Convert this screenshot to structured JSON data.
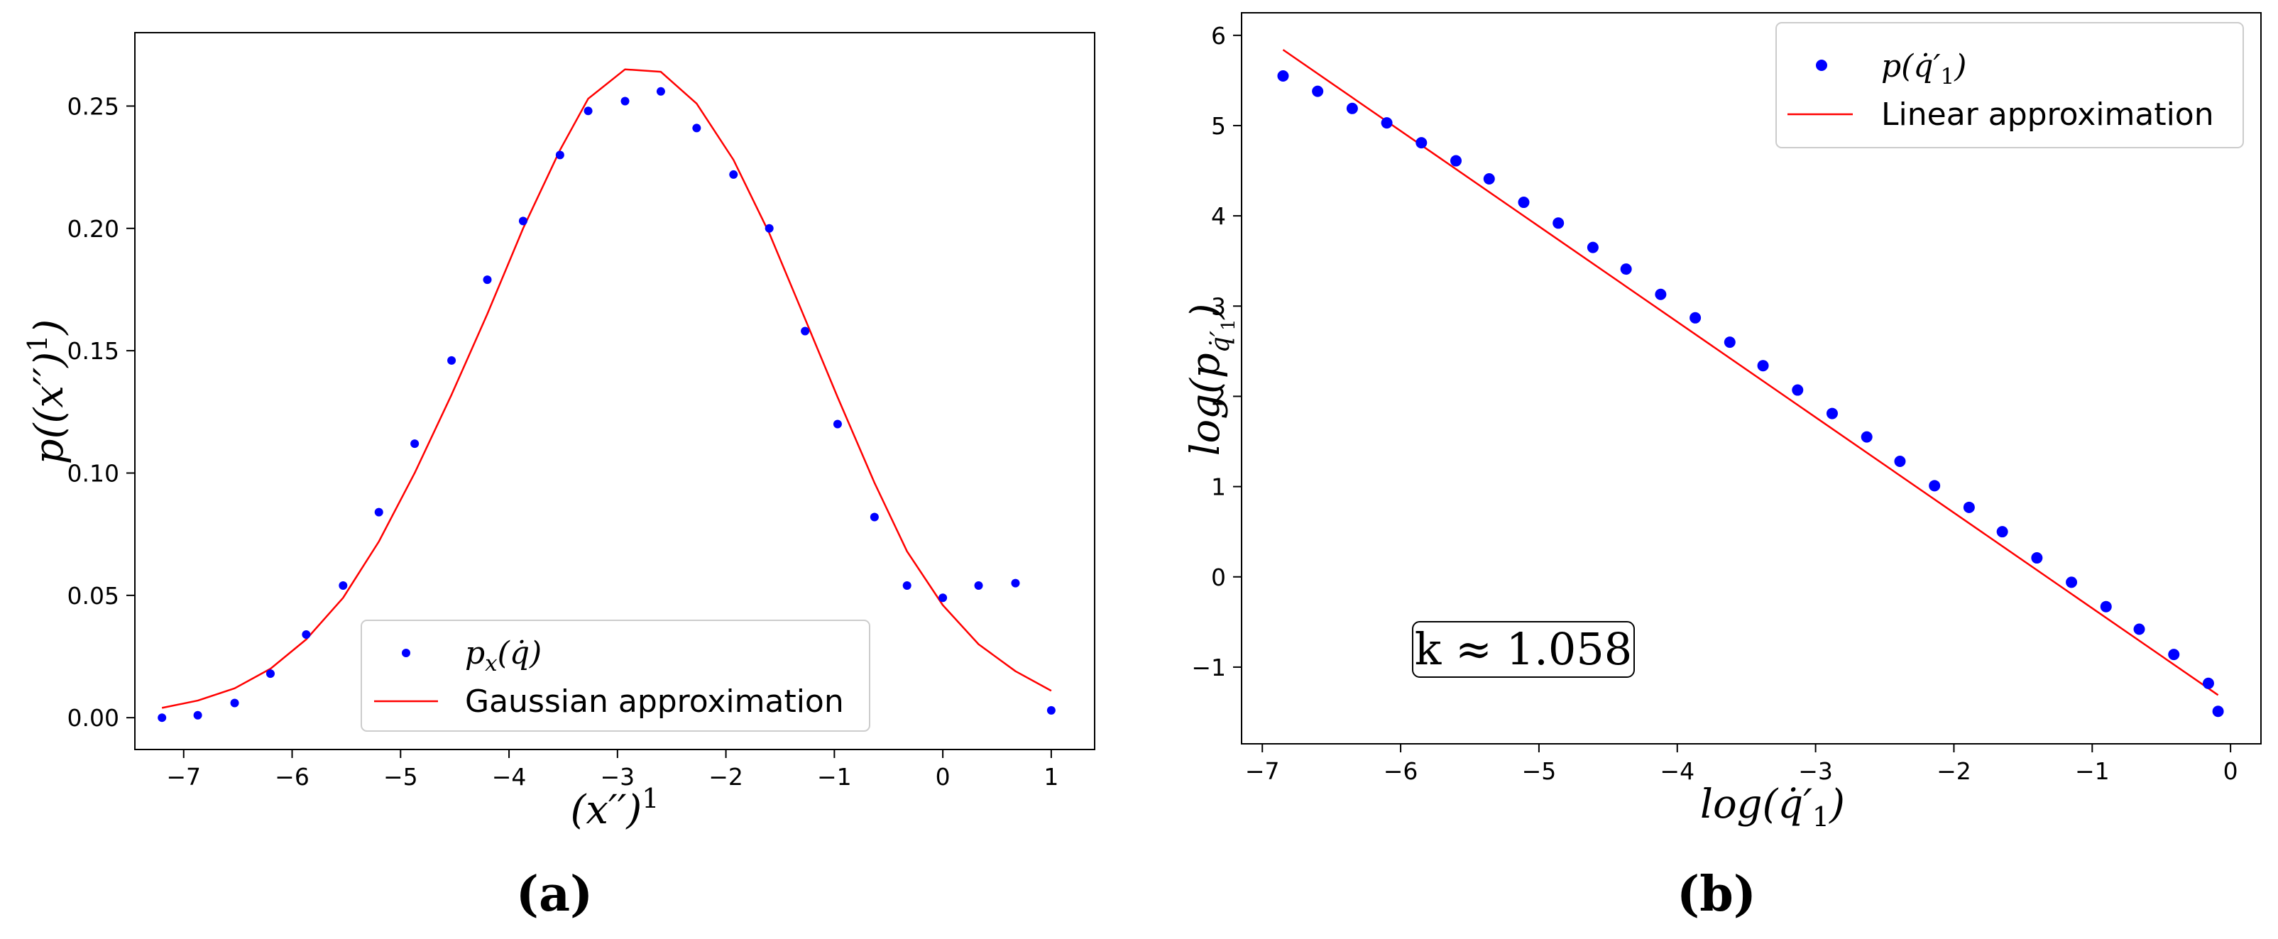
{
  "chart_data": [
    {
      "type": "scatter",
      "panel_label": "(a)",
      "xlabel": "(x'')¹",
      "ylabel": "p((x'')¹)",
      "xlim": [
        -7.45,
        1.4
      ],
      "ylim": [
        -0.013,
        0.28
      ],
      "xticks": [
        -7,
        -6,
        -5,
        -4,
        -3,
        -2,
        -1,
        0,
        1
      ],
      "xtick_labels": [
        "−7",
        "−6",
        "−5",
        "−4",
        "−3",
        "−2",
        "−1",
        "0",
        "1"
      ],
      "yticks": [
        0.0,
        0.05,
        0.1,
        0.15,
        0.2,
        0.25
      ],
      "ytick_labels": [
        "0.00",
        "0.05",
        "0.10",
        "0.15",
        "0.20",
        "0.25"
      ],
      "legend_position": "lower-right",
      "series": [
        {
          "name": "p_x(q̇)",
          "kind": "scatter",
          "color": "#0000ff",
          "x": [
            -7.2,
            -6.87,
            -6.53,
            -6.2,
            -5.87,
            -5.53,
            -5.2,
            -4.87,
            -4.53,
            -4.2,
            -3.87,
            -3.53,
            -3.27,
            -2.93,
            -2.6,
            -2.27,
            -1.93,
            -1.6,
            -1.27,
            -0.97,
            -0.63,
            -0.33,
            0.0,
            0.33,
            0.67,
            1.0
          ],
          "y": [
            0.0,
            0.001,
            0.006,
            0.018,
            0.034,
            0.054,
            0.084,
            0.112,
            0.146,
            0.179,
            0.203,
            0.23,
            0.248,
            0.252,
            0.256,
            0.241,
            0.222,
            0.2,
            0.158,
            0.12,
            0.082,
            0.054,
            0.049,
            0.054,
            0.055,
            0.003
          ]
        },
        {
          "name": "Gaussian approximation",
          "kind": "line",
          "color": "#ff0000",
          "x": [
            -7.2,
            -6.87,
            -6.53,
            -6.2,
            -5.87,
            -5.53,
            -5.2,
            -4.87,
            -4.53,
            -4.2,
            -3.87,
            -3.53,
            -3.27,
            -2.93,
            -2.6,
            -2.27,
            -1.93,
            -1.6,
            -1.27,
            -0.97,
            -0.63,
            -0.33,
            0.0,
            0.33,
            0.67,
            1.0
          ],
          "y": [
            0.004,
            0.007,
            0.012,
            0.02,
            0.032,
            0.049,
            0.072,
            0.1,
            0.132,
            0.165,
            0.2,
            0.232,
            0.253,
            0.265,
            0.264,
            0.251,
            0.228,
            0.198,
            0.163,
            0.131,
            0.096,
            0.068,
            0.046,
            0.03,
            0.019,
            0.011
          ]
        }
      ]
    },
    {
      "type": "scatter",
      "panel_label": "(b)",
      "xlabel": "log(q̇′₁)",
      "ylabel": "log(p_{q̇′₁})",
      "xlim": [
        -7.15,
        0.22
      ],
      "ylim": [
        -1.85,
        6.25
      ],
      "xticks": [
        -7,
        -6,
        -5,
        -4,
        -3,
        -2,
        -1,
        0
      ],
      "xtick_labels": [
        "−7",
        "−6",
        "−5",
        "−4",
        "−3",
        "−2",
        "−1",
        "0"
      ],
      "yticks": [
        -1,
        0,
        1,
        2,
        3,
        4,
        5,
        6
      ],
      "ytick_labels": [
        "−1",
        "0",
        "1",
        "2",
        "3",
        "4",
        "5",
        "6"
      ],
      "legend_position": "top-right",
      "annotation": "k ≈ 1.058",
      "series": [
        {
          "name": "p(q̇′₁)",
          "kind": "scatter",
          "color": "#0000ff",
          "x": [
            -6.85,
            -6.6,
            -6.35,
            -6.1,
            -5.85,
            -5.6,
            -5.36,
            -5.11,
            -4.86,
            -4.61,
            -4.37,
            -4.12,
            -3.87,
            -3.62,
            -3.38,
            -3.13,
            -2.88,
            -2.63,
            -2.39,
            -2.14,
            -1.89,
            -1.65,
            -1.4,
            -1.15,
            -0.9,
            -0.66,
            -0.41,
            -0.16,
            -0.09
          ],
          "y": [
            5.55,
            5.38,
            5.19,
            5.03,
            4.81,
            4.61,
            4.41,
            4.15,
            3.92,
            3.65,
            3.41,
            3.13,
            2.87,
            2.6,
            2.34,
            2.07,
            1.81,
            1.55,
            1.28,
            1.01,
            0.77,
            0.5,
            0.21,
            -0.06,
            -0.33,
            -0.58,
            -0.86,
            -1.18,
            -1.49
          ]
        },
        {
          "name": "Linear approximation",
          "kind": "line",
          "color": "#ff0000",
          "x": [
            -6.85,
            -0.09
          ],
          "y": [
            5.84,
            -1.31
          ]
        }
      ]
    }
  ]
}
